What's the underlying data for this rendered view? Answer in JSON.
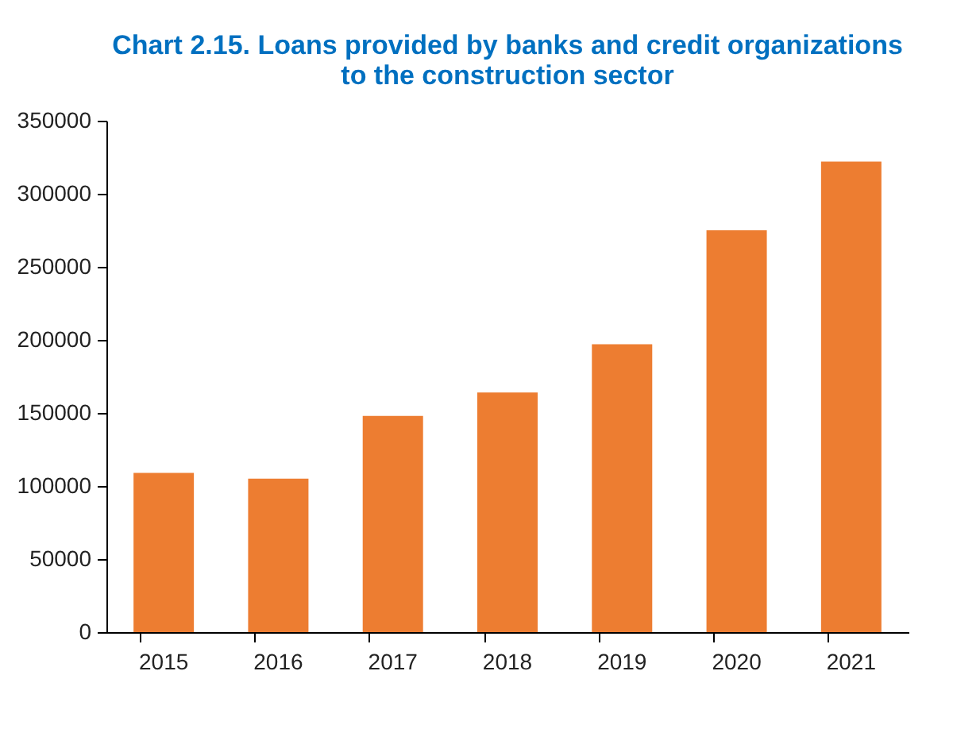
{
  "chart_data": {
    "type": "bar",
    "title": [
      "Chart 2.15. Loans provided by banks and credit organizations",
      "to the construction sector"
    ],
    "categories": [
      "2015",
      "2016",
      "2017",
      "2018",
      "2019",
      "2020",
      "2021"
    ],
    "values": [
      109000,
      105000,
      148000,
      164000,
      197000,
      275000,
      322000
    ],
    "color": "#ed7d31",
    "ylim": [
      0,
      350000
    ],
    "yticks": [
      0,
      50000,
      100000,
      150000,
      200000,
      250000,
      300000,
      350000
    ],
    "grid": false
  }
}
